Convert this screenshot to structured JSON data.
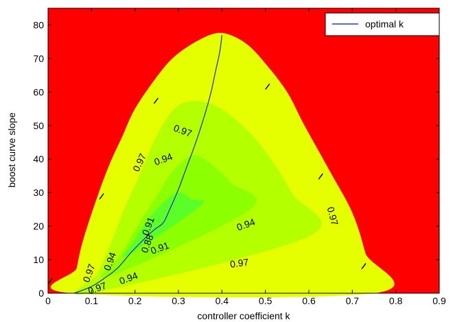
{
  "chart_data": {
    "type": "contour",
    "title": "",
    "xlabel": "controller coefficient k",
    "ylabel": "boost curve slope",
    "xlim": [
      0,
      0.9
    ],
    "ylim": [
      0,
      85
    ],
    "x_ticks": [
      "0",
      "0.1",
      "0.2",
      "0.3",
      "0.4",
      "0.5",
      "0.6",
      "0.7",
      "0.8",
      "0.9"
    ],
    "y_ticks": [
      "0",
      "10",
      "20",
      "30",
      "40",
      "50",
      "60",
      "70",
      "80"
    ],
    "grid": false,
    "legend": {
      "position": "top-right",
      "entries": [
        "optimal k"
      ]
    },
    "colors": {
      "background": "#ff0000",
      "level_097": "#e6ff00",
      "level_094": "#b4ff00",
      "level_091": "#8cff00",
      "level_088": "#5aff28",
      "optimal_line": "#2a35c8"
    },
    "contour_levels": [
      0.97,
      0.94,
      0.91,
      0.88
    ],
    "regions": [
      {
        "level": 0.97,
        "color_key": "level_097",
        "boundary": [
          [
            0.055,
            0
          ],
          [
            0.75,
            0
          ],
          [
            0.73,
            12
          ],
          [
            0.7,
            24
          ],
          [
            0.65,
            36
          ],
          [
            0.59,
            50
          ],
          [
            0.55,
            60
          ],
          [
            0.5,
            68.5
          ],
          [
            0.46,
            74
          ],
          [
            0.42,
            77
          ],
          [
            0.385,
            77.5
          ],
          [
            0.34,
            75
          ],
          [
            0.29,
            70.5
          ],
          [
            0.25,
            64.5
          ],
          [
            0.2,
            55
          ],
          [
            0.17,
            46.5
          ],
          [
            0.14,
            38
          ],
          [
            0.11,
            27.5
          ],
          [
            0.08,
            15.5
          ],
          [
            0.066,
            7.5
          ]
        ]
      },
      {
        "level": 0.94,
        "color_key": "level_094",
        "boundary": [
          [
            0.095,
            0
          ],
          [
            0.6,
            17
          ],
          [
            0.56,
            30
          ],
          [
            0.49,
            44
          ],
          [
            0.42,
            53
          ],
          [
            0.36,
            57
          ],
          [
            0.3,
            56
          ],
          [
            0.25,
            47
          ],
          [
            0.21,
            35
          ],
          [
            0.175,
            25
          ],
          [
            0.145,
            15
          ],
          [
            0.115,
            6
          ]
        ]
      },
      {
        "level": 0.91,
        "color_key": "level_091",
        "boundary": [
          [
            0.14,
            5
          ],
          [
            0.465,
            25
          ],
          [
            0.42,
            33
          ],
          [
            0.37,
            39
          ],
          [
            0.33,
            41
          ],
          [
            0.285,
            36
          ],
          [
            0.25,
            29
          ],
          [
            0.21,
            21
          ],
          [
            0.17,
            12
          ]
        ]
      },
      {
        "level": 0.88,
        "color_key": "level_088",
        "boundary": [
          [
            0.18,
            11
          ],
          [
            0.35,
            26
          ],
          [
            0.33,
            28
          ],
          [
            0.3,
            30
          ],
          [
            0.265,
            27
          ],
          [
            0.23,
            22
          ],
          [
            0.2,
            16
          ]
        ]
      }
    ],
    "series": [
      {
        "name": "optimal k",
        "color_key": "optimal_line",
        "x": [
          0.06,
          0.1,
          0.13,
          0.16,
          0.19,
          0.22,
          0.245,
          0.265,
          0.28,
          0.3,
          0.32,
          0.34,
          0.36,
          0.375,
          0.385,
          0.395,
          0.4
        ],
        "y": [
          0,
          2,
          4.5,
          7.5,
          12,
          16,
          19,
          21,
          25,
          31,
          38,
          45,
          53,
          60,
          66,
          72,
          77
        ]
      }
    ],
    "contour_labels": [
      {
        "text": "0.97",
        "x": 0.31,
        "y": 48.5,
        "angle": 20
      },
      {
        "text": "0.97",
        "x": 0.21,
        "y": 39,
        "angle": -65
      },
      {
        "text": "0.94",
        "x": 0.265,
        "y": 40,
        "angle": -20
      },
      {
        "text": "0.97",
        "x": 0.655,
        "y": 23,
        "angle": 75
      },
      {
        "text": "0.94",
        "x": 0.455,
        "y": 20.5,
        "angle": -20
      },
      {
        "text": "0.91",
        "x": 0.23,
        "y": 20,
        "angle": -70
      },
      {
        "text": "0.88",
        "x": 0.228,
        "y": 14.8,
        "angle": -70
      },
      {
        "text": "0.91",
        "x": 0.257,
        "y": 13.5,
        "angle": -20
      },
      {
        "text": "0.94",
        "x": 0.142,
        "y": 9.5,
        "angle": -70
      },
      {
        "text": "0.97",
        "x": 0.44,
        "y": 9,
        "angle": -8
      },
      {
        "text": "0.97",
        "x": 0.094,
        "y": 6,
        "angle": -70
      },
      {
        "text": "0.97",
        "x": 0.113,
        "y": 1.5,
        "angle": -20
      },
      {
        "text": "0.94",
        "x": 0.185,
        "y": 4.5,
        "angle": -20
      }
    ],
    "contour_ticks": [
      {
        "x": 0.006,
        "y": 4.3
      },
      {
        "x": 0.137,
        "y": 34
      },
      {
        "x": 0.276,
        "y": 67.5
      },
      {
        "x": 0.561,
        "y": 72.5
      },
      {
        "x": 0.697,
        "y": 41
      },
      {
        "x": 0.807,
        "y": 9.5
      }
    ]
  }
}
